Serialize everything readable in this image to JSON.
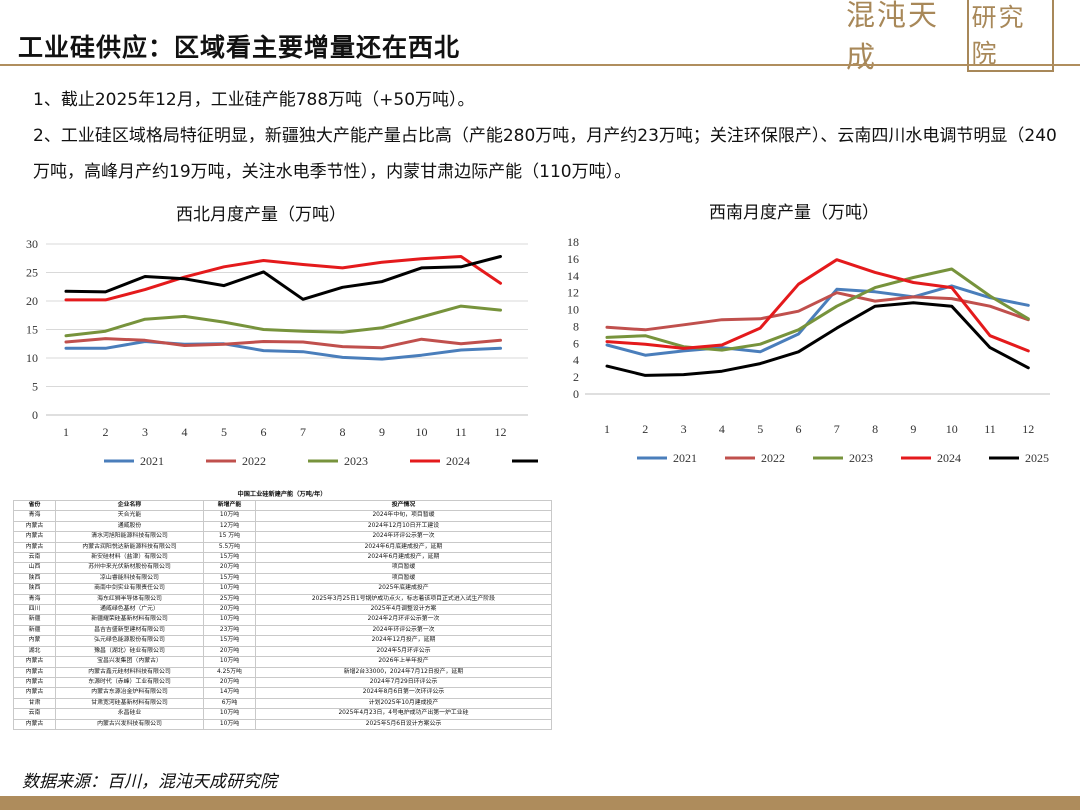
{
  "header": {
    "title": "工业硅供应：区域看主要增量还在西北",
    "logo_text": "混沌天成",
    "logo_box_text": "研究院"
  },
  "body_text": {
    "p1": "1、截止2025年12月，工业硅产能788万吨（+50万吨）。",
    "p2": "2、工业硅区域格局特征明显，新疆独大产能产量占比高（产能280万吨，月产约23万吨；关注环保限产）、云南四川水电调节明显（240万吨，高峰月产约19万吨，关注水电季节性），内蒙甘肃边际产能（110万吨）。"
  },
  "chart_data": [
    {
      "type": "line",
      "title": "西北月度产量（万吨）",
      "categories": [
        "1",
        "2",
        "3",
        "4",
        "5",
        "6",
        "7",
        "8",
        "9",
        "10",
        "11",
        "12"
      ],
      "ylim": [
        0,
        30
      ],
      "yticks": [
        "0",
        "5",
        "10",
        "15",
        "20",
        "25",
        "30"
      ],
      "legend_position": "bottom",
      "grid": true,
      "series": [
        {
          "name": "2021",
          "color": "#4a7ebb",
          "values": [
            11.7,
            11.7,
            12.9,
            12.4,
            12.5,
            11.3,
            11.1,
            10.1,
            9.8,
            10.5,
            11.4,
            11.7
          ]
        },
        {
          "name": "2022",
          "color": "#c0504d",
          "values": [
            12.8,
            13.4,
            13.1,
            12.2,
            12.4,
            12.9,
            12.8,
            12.0,
            11.8,
            13.3,
            12.5,
            13.1
          ]
        },
        {
          "name": "2023",
          "color": "#77933c",
          "values": [
            13.9,
            14.7,
            16.8,
            17.3,
            16.3,
            15.0,
            14.7,
            14.5,
            15.3,
            17.2,
            19.1,
            18.4
          ]
        },
        {
          "name": "2024",
          "color": "#e41a1c",
          "values": [
            20.2,
            20.2,
            22.0,
            24.2,
            26.0,
            27.1,
            26.4,
            25.8,
            26.8,
            27.4,
            27.8,
            23.1
          ]
        },
        {
          "name": "2025",
          "color": "#000000",
          "values": [
            21.7,
            21.6,
            24.3,
            23.9,
            22.7,
            25.1,
            20.3,
            22.4,
            23.4,
            25.8,
            26.0,
            27.8
          ]
        }
      ]
    },
    {
      "type": "line",
      "title": "西南月度产量（万吨）",
      "categories": [
        "1",
        "2",
        "3",
        "4",
        "5",
        "6",
        "7",
        "8",
        "9",
        "10",
        "11",
        "12"
      ],
      "ylim": [
        0,
        18
      ],
      "yticks": [
        "0",
        "2",
        "4",
        "6",
        "8",
        "10",
        "12",
        "14",
        "16",
        "18"
      ],
      "legend_position": "bottom",
      "grid": false,
      "series": [
        {
          "name": "2021",
          "color": "#4a7ebb",
          "values": [
            5.8,
            4.6,
            5.1,
            5.5,
            5.0,
            7.1,
            12.4,
            12.1,
            11.5,
            12.8,
            11.4,
            10.5
          ]
        },
        {
          "name": "2022",
          "color": "#c0504d",
          "values": [
            7.9,
            7.6,
            8.2,
            8.8,
            8.9,
            9.8,
            12.0,
            11.0,
            11.5,
            11.3,
            10.4,
            8.8
          ]
        },
        {
          "name": "2023",
          "color": "#77933c",
          "values": [
            6.7,
            6.9,
            5.6,
            5.2,
            5.9,
            7.6,
            10.4,
            12.6,
            13.8,
            14.8,
            11.6,
            8.9
          ]
        },
        {
          "name": "2024",
          "color": "#e41a1c",
          "values": [
            6.2,
            5.9,
            5.4,
            5.8,
            7.8,
            13.0,
            15.9,
            14.4,
            13.2,
            12.6,
            6.9,
            5.1
          ]
        },
        {
          "name": "2025",
          "color": "#000000",
          "values": [
            3.3,
            2.2,
            2.3,
            2.7,
            3.6,
            5.0,
            7.8,
            10.4,
            10.8,
            10.4,
            5.5,
            3.1
          ]
        }
      ]
    }
  ],
  "table": {
    "caption": "中国工业硅新建产能（万吨/年）",
    "headers": [
      "省份",
      "企业名称",
      "新增产能",
      "投产情况"
    ],
    "rows": [
      [
        "青海",
        "天合光能",
        "10万吨",
        "2024年中旬，项目暂缓"
      ],
      [
        "内蒙古",
        "通威股份",
        "12万吨",
        "2024年12月10日开工建设"
      ],
      [
        "内蒙古",
        "清水河旭阳能源科技有限公司",
        "15 万吨",
        "2024年环评公示第一次"
      ],
      [
        "内蒙古",
        "内蒙古润阳悦达新能源科技有限公司",
        "5.5万吨",
        "2024年6月底建成投产，延期"
      ],
      [
        "云南",
        "新安硅材料（盐津）有限公司",
        "15万吨",
        "2024年6月建成投产，延期"
      ],
      [
        "山西",
        "苏州中来光伏新材股份有限公司",
        "20万吨",
        "项目暂缓"
      ],
      [
        "陕西",
        "凉山睿能科技有限公司",
        "15万吨",
        "项目暂缓"
      ],
      [
        "陕西",
        "商南中剑实业有限责任公司",
        "10万吨",
        "2025年底建成投产"
      ],
      [
        "青海",
        "海东红狮半导体有限公司",
        "25万吨",
        "2025年3月25日1号锅炉成功点火，标志着该项目正式进入试生产阶段"
      ],
      [
        "四川",
        "通威绿色基材（广元）",
        "20万吨",
        "2025年4月调整设计方案"
      ],
      [
        "新疆",
        "新疆耀荣硅基新材料有限公司",
        "10万吨",
        "2024年2月环评公示第一次"
      ],
      [
        "新疆",
        "昌吉吉盛新型建材有限公司",
        "23万吨",
        "2024年环评公示第一次"
      ],
      [
        "内蒙",
        "弘元绿色能源股份有限公司",
        "15万吨",
        "2024年12月投产，延期"
      ],
      [
        "湖北",
        "豫昌（湖北）硅业有限公司",
        "20万吨",
        "2024年5月环评公示"
      ],
      [
        "内蒙古",
        "宝昌兴发集团（内蒙古）",
        "10万吨",
        "2026年上半年投产"
      ],
      [
        "内蒙古",
        "内蒙古鑫元硅材料科技有限公司",
        "4.25万吨",
        "新增2台33000，2024年7月12日投产，延期"
      ],
      [
        "内蒙古",
        "东源时代（赤峰）工业有限公司",
        "20万吨",
        "2024年7月29日环评公示"
      ],
      [
        "内蒙古",
        "内蒙古东源冶金炉料有限公司",
        "14万吨",
        "2024年8月6日第一次环评公示"
      ],
      [
        "甘肃",
        "甘肃宽河硅基新材料有限公司",
        "6万吨",
        "计划2025年10月建成投产"
      ],
      [
        "云南",
        "永昌硅业",
        "10万吨",
        "2025年4月23日，4号电炉成功产出第一炉工业硅"
      ],
      [
        "内蒙古",
        "内蒙古兴发科技有限公司",
        "10万吨",
        "2025年5月6日设计方案公示"
      ]
    ]
  },
  "footer": {
    "source": "数据来源：百川，混沌天成研究院"
  }
}
